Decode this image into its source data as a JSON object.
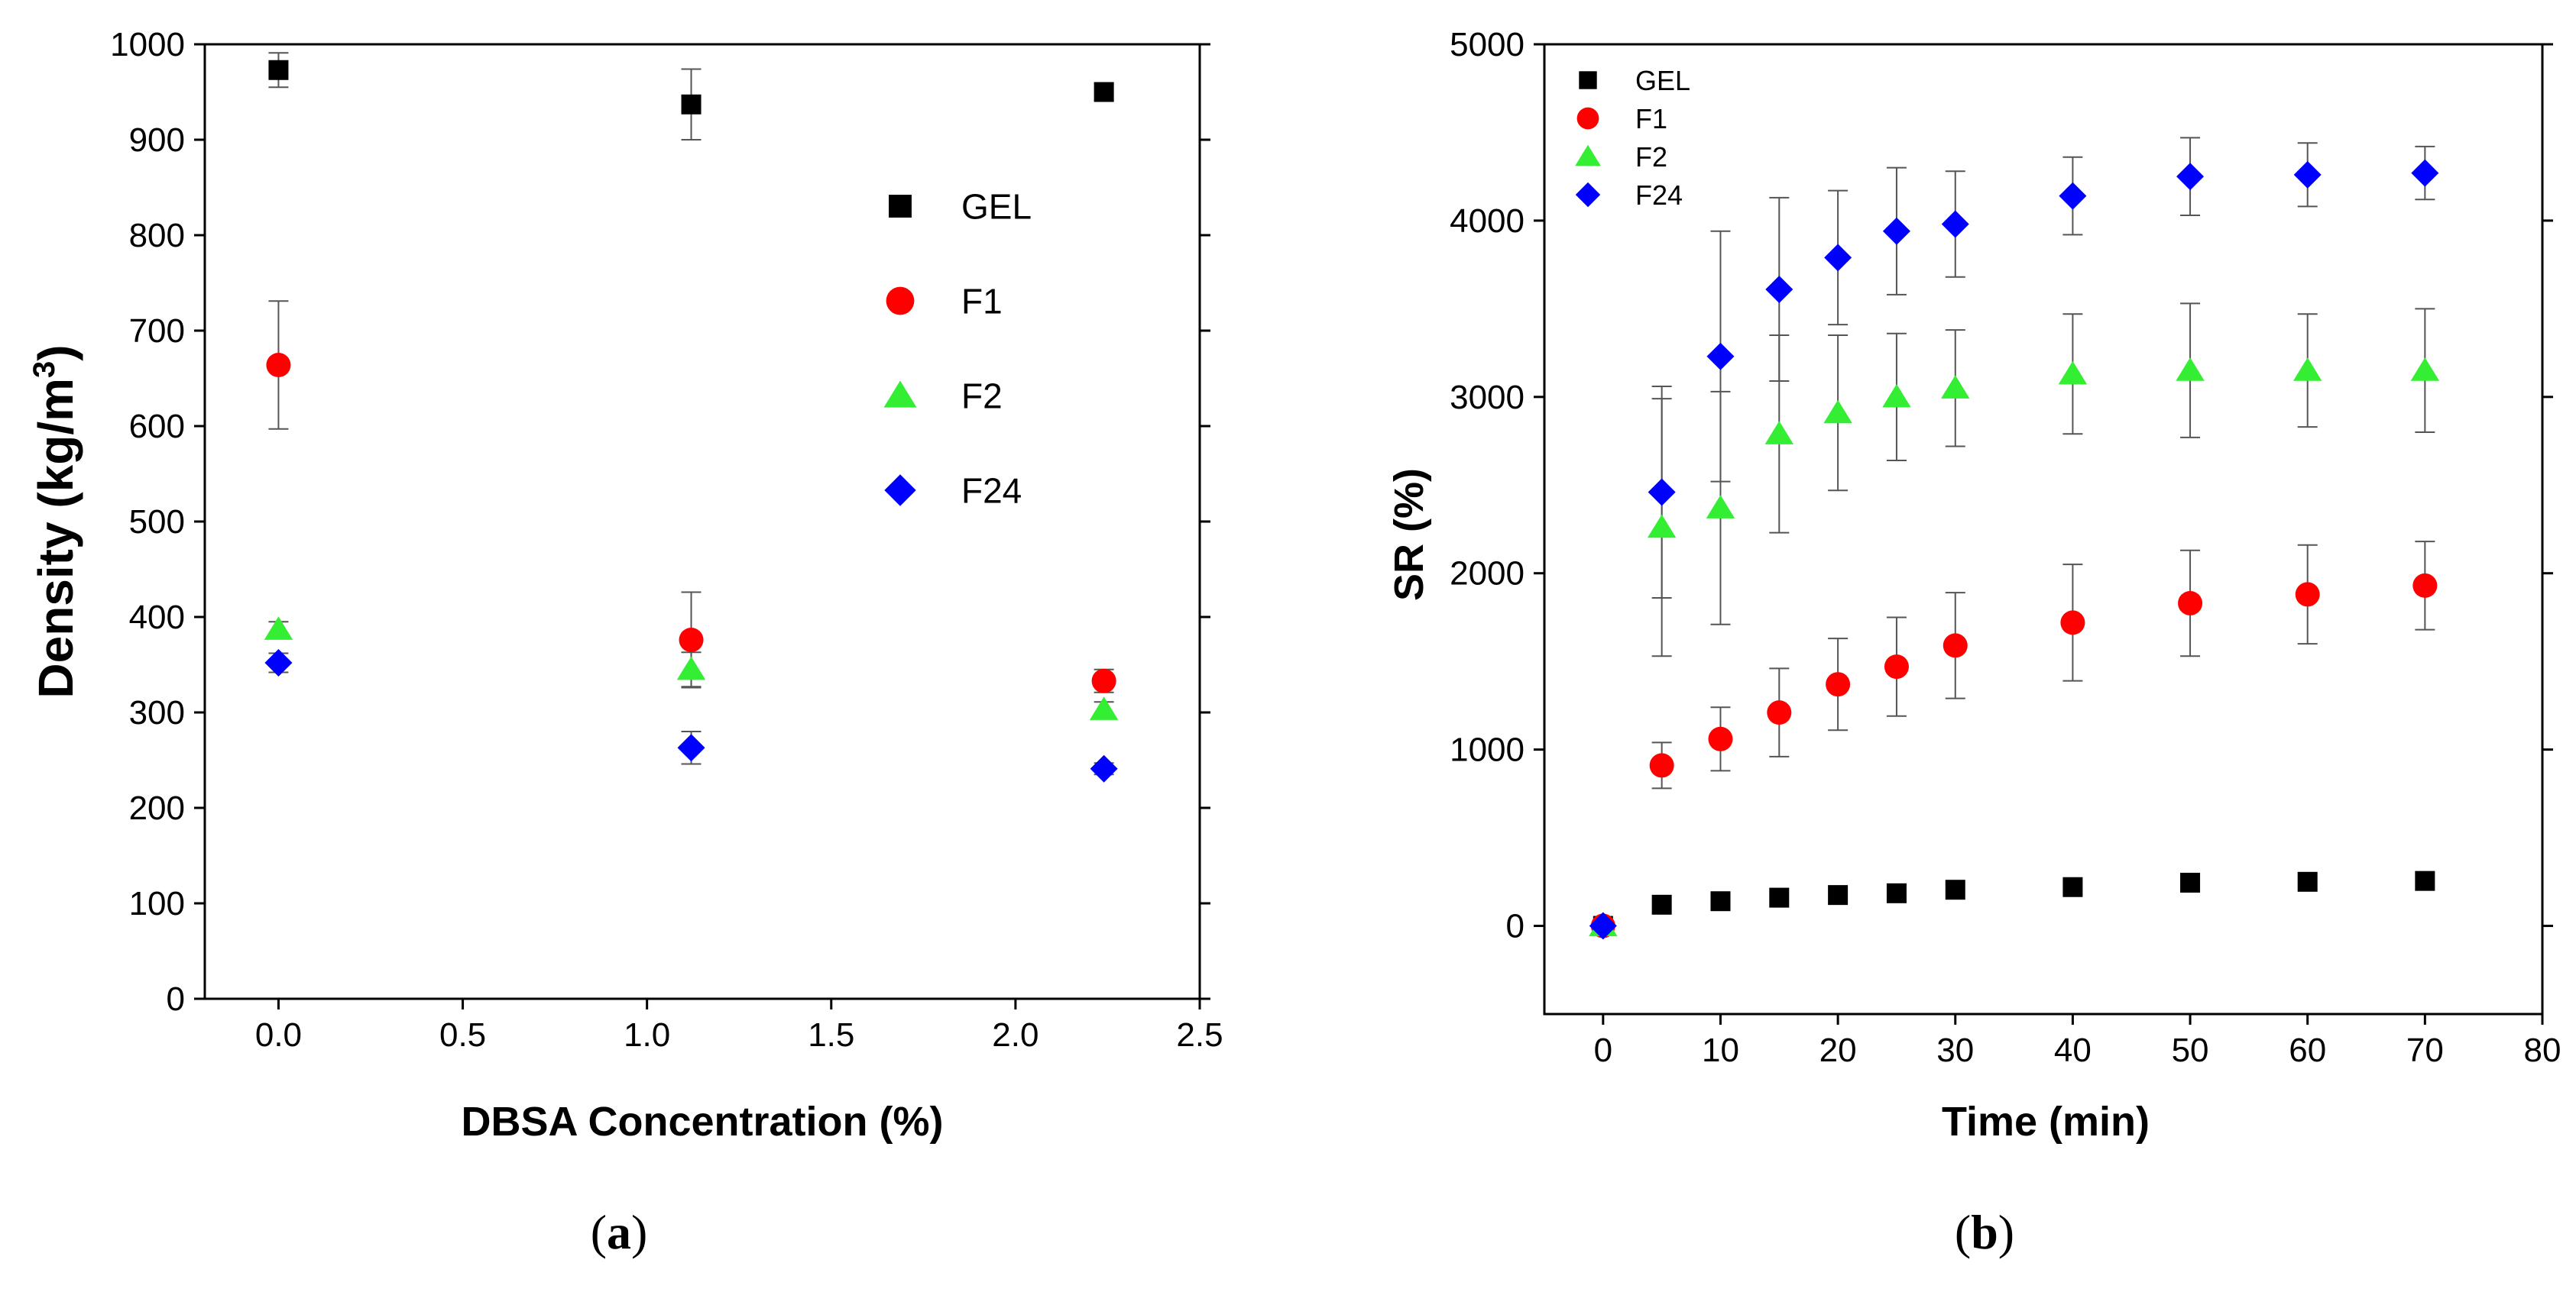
{
  "figure": {
    "background": "#ffffff",
    "axis_color": "#000000",
    "errorbar_color": "#555555",
    "series_colors": {
      "GEL": "#000000",
      "F1": "#ff0000",
      "F2": "#33ee33",
      "F24": "#0000ff"
    },
    "series_markers": {
      "GEL": "square",
      "F1": "circle",
      "F2": "triangle",
      "F24": "diamond"
    }
  },
  "chart_data": [
    {
      "id": "a",
      "type": "scatter",
      "caption_open": "(",
      "caption_letter": "a",
      "caption_close": ")",
      "xlabel": "DBSA Concentration (%)",
      "ylabel_main": "Density (kg/m",
      "ylabel_sup": "3",
      "ylabel_end": ")",
      "xlim": [
        -0.2,
        2.5
      ],
      "ylim": [
        0,
        1000
      ],
      "xticks": [
        0.0,
        0.5,
        1.0,
        1.5,
        2.0,
        2.5
      ],
      "xtick_labels": [
        "0.0",
        "0.5",
        "1.0",
        "1.5",
        "2.0",
        "2.5"
      ],
      "yticks": [
        0,
        100,
        200,
        300,
        400,
        500,
        600,
        700,
        800,
        900,
        1000
      ],
      "ytick_labels": [
        "0",
        "100",
        "200",
        "300",
        "400",
        "500",
        "600",
        "700",
        "800",
        "900",
        "1000"
      ],
      "legend_position": "right-center",
      "grid": false,
      "x": [
        0.0,
        1.12,
        2.24
      ],
      "series": [
        {
          "name": "GEL",
          "values": [
            973,
            937,
            950
          ],
          "errors": [
            18,
            37,
            9
          ]
        },
        {
          "name": "F1",
          "values": [
            664,
            376,
            333
          ],
          "errors": [
            67,
            50,
            12
          ]
        },
        {
          "name": "F2",
          "values": [
            387,
            345,
            303
          ],
          "errors": [
            8,
            18,
            8
          ]
        },
        {
          "name": "F24",
          "values": [
            352,
            263,
            241
          ],
          "errors": [
            10,
            17,
            6
          ]
        }
      ]
    },
    {
      "id": "b",
      "type": "scatter",
      "caption_open": "(",
      "caption_letter": "b",
      "caption_close": ")",
      "xlabel": "Time (min)",
      "ylabel_main": "SR (%)",
      "ylabel_sup": "",
      "ylabel_end": "",
      "xlim": [
        -5,
        80
      ],
      "ylim": [
        -500,
        5000
      ],
      "xticks": [
        0,
        10,
        20,
        30,
        40,
        50,
        60,
        70,
        80
      ],
      "xtick_labels": [
        "0",
        "10",
        "20",
        "30",
        "40",
        "50",
        "60",
        "70",
        "80"
      ],
      "yticks": [
        0,
        1000,
        2000,
        3000,
        4000,
        5000
      ],
      "ytick_labels": [
        "0",
        "1000",
        "2000",
        "3000",
        "4000",
        "5000"
      ],
      "legend_position": "top-left",
      "grid": false,
      "x": [
        0,
        5,
        10,
        15,
        20,
        25,
        30,
        40,
        50,
        60,
        70
      ],
      "series": [
        {
          "name": "GEL",
          "values": [
            0,
            120,
            140,
            160,
            175,
            185,
            205,
            220,
            245,
            250,
            255
          ],
          "errors": [
            0,
            0,
            0,
            0,
            0,
            0,
            0,
            0,
            0,
            0,
            0
          ]
        },
        {
          "name": "F1",
          "values": [
            0,
            910,
            1060,
            1210,
            1370,
            1470,
            1590,
            1720,
            1830,
            1880,
            1930
          ],
          "errors": [
            0,
            130,
            180,
            250,
            260,
            280,
            300,
            330,
            300,
            280,
            250
          ]
        },
        {
          "name": "F2",
          "values": [
            0,
            2260,
            2370,
            2790,
            2910,
            3000,
            3050,
            3130,
            3150,
            3150,
            3150
          ],
          "errors": [
            0,
            730,
            660,
            560,
            440,
            360,
            330,
            340,
            380,
            320,
            350
          ]
        },
        {
          "name": "F24",
          "values": [
            0,
            2460,
            3230,
            3610,
            3790,
            3940,
            3980,
            4140,
            4250,
            4260,
            4270
          ],
          "errors": [
            0,
            600,
            710,
            520,
            380,
            360,
            300,
            220,
            220,
            180,
            150
          ]
        }
      ]
    }
  ]
}
